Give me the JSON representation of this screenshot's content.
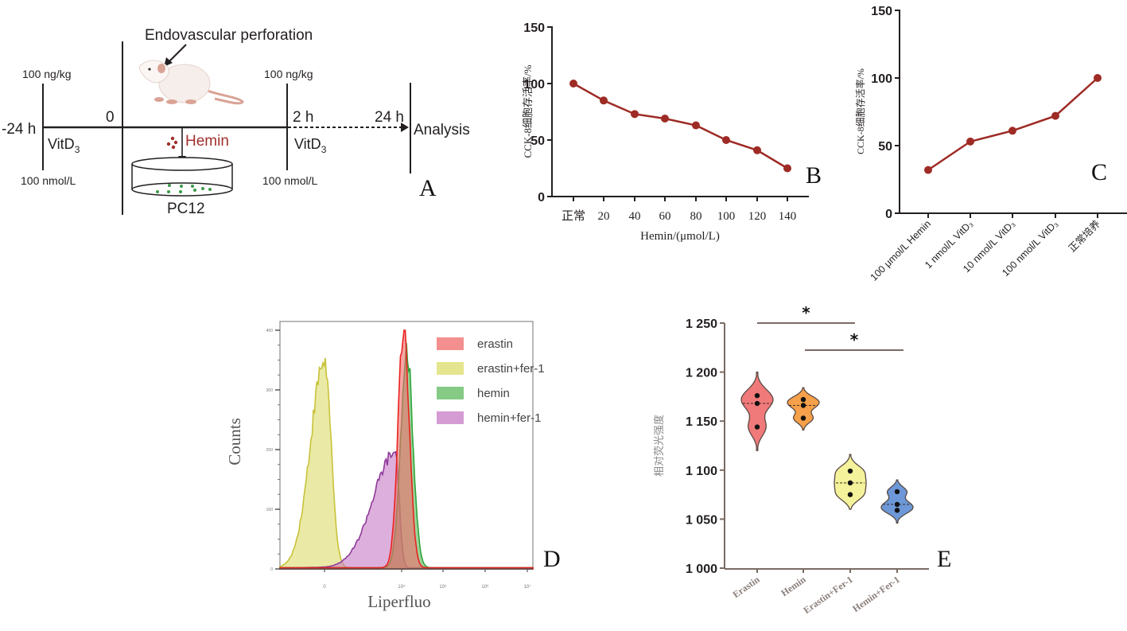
{
  "panel_a": {
    "panel_label": "A",
    "surgery_label": "Endovascular perforation",
    "time_points": [
      "-24 h",
      "0",
      "2 h",
      "24 h"
    ],
    "analysis_label": "Analysis",
    "dose_top_1": "100 ng/kg",
    "dose_bottom_1": "100 nmol/L",
    "dose_top_2": "100 ng/kg",
    "dose_bottom_2": "100 nmol/L",
    "vitd_label_1": "VitD",
    "vitd_sub_1": "3",
    "vitd_label_2": "VitD",
    "vitd_sub_2": "3",
    "hemin_label": "Hemin",
    "cell_label": "PC12",
    "colors": {
      "hemin": "#a0302d",
      "cells": "#3c9a48",
      "rat_body": "#f6eeea",
      "rat_pink": "#d9a396"
    }
  },
  "chart_data": [
    {
      "id": "B",
      "type": "line",
      "panel_label": "B",
      "title": "",
      "xlabel": "Hemin/(μmol/L)",
      "ylabel": "CCK-8细胞存活率/%",
      "categories": [
        "正常",
        "20",
        "40",
        "60",
        "80",
        "100",
        "120",
        "140"
      ],
      "values": [
        100,
        85,
        73,
        69,
        63,
        50,
        41,
        25
      ],
      "ylim": [
        0,
        150
      ],
      "yticks": [
        0,
        50,
        100,
        150
      ],
      "color": "#9e2b25",
      "grid": false
    },
    {
      "id": "C",
      "type": "line",
      "panel_label": "C",
      "title": "",
      "xlabel": "",
      "ylabel": "CCK-8细胞存活率/%",
      "categories": [
        "100 μmol/L Hemin",
        "1 nmol/L VitD₃",
        "10 nmol/L VitD₃",
        "100 nmol/L VitD₃",
        "正常培养"
      ],
      "values": [
        32,
        53,
        61,
        72,
        100
      ],
      "ylim": [
        0,
        150
      ],
      "yticks": [
        0,
        50,
        100,
        150
      ],
      "color": "#9e2b25",
      "grid": false
    },
    {
      "id": "D",
      "type": "area",
      "panel_label": "D",
      "title": "",
      "xlabel": "Liperfluo",
      "ylabel": "Counts",
      "x_scale": "log",
      "xticks": [
        "0",
        "10⁴",
        "10⁵",
        "10⁶",
        "10⁷"
      ],
      "yticks": [
        0,
        100,
        200,
        300,
        400
      ],
      "ylim": [
        0,
        400
      ],
      "legend_position": "top-right",
      "series": [
        {
          "name": "erastin",
          "color": "#f06a6a",
          "stroke": "#e8231f",
          "peak_x_log": 4.1,
          "peak_count": 400,
          "width_log": 0.28
        },
        {
          "name": "erastin+fer-1",
          "color": "#dcdc6a",
          "stroke": "#c8c23a",
          "peak_x_log": 0.2,
          "peak_count": 350,
          "width_log": 0.32
        },
        {
          "name": "hemin",
          "color": "#5cb85c",
          "stroke": "#2fa43a",
          "peak_x_log": 4.25,
          "peak_count": 370,
          "width_log": 0.3
        },
        {
          "name": "hemin+fer-1",
          "color": "#c77ac4",
          "stroke": "#8e3a9a",
          "peak_x_log": 3.7,
          "peak_count": 195,
          "width_log": 0.9
        }
      ]
    },
    {
      "id": "E",
      "type": "violin",
      "panel_label": "E",
      "title": "",
      "xlabel": "",
      "ylabel": "相对荧光强度",
      "categories": [
        "Erastin",
        "Hemin",
        "Erastin+Fer-1",
        "Hemin+Fer-1"
      ],
      "ylim": [
        1000,
        1250
      ],
      "yticks": [
        1000,
        1050,
        1100,
        1150,
        1200,
        1250
      ],
      "ytick_labels": [
        "1 000",
        "1 050",
        "1 100",
        "1 150",
        "1 200",
        "1 250"
      ],
      "series": [
        {
          "name": "Erastin",
          "color": "#f07a7a",
          "points": [
            1176,
            1168,
            1144
          ],
          "median": 1168,
          "range": [
            1120,
            1200
          ]
        },
        {
          "name": "Hemin",
          "color": "#f5a04a",
          "points": [
            1172,
            1166,
            1153
          ],
          "median": 1166,
          "range": [
            1141,
            1184
          ]
        },
        {
          "name": "Erastin+Fer-1",
          "color": "#f4f29a",
          "points": [
            1099,
            1087,
            1075
          ],
          "median": 1087,
          "range": [
            1060,
            1116
          ]
        },
        {
          "name": "Hemin+Fer-1",
          "color": "#6c98d8",
          "points": [
            1078,
            1065,
            1059
          ],
          "median": 1065,
          "range": [
            1046,
            1090
          ]
        }
      ],
      "significance": [
        {
          "from": "Erastin",
          "to": "Erastin+Fer-1",
          "label": "*"
        },
        {
          "from": "Hemin",
          "to": "Hemin+Fer-1",
          "label": "*"
        }
      ]
    }
  ]
}
